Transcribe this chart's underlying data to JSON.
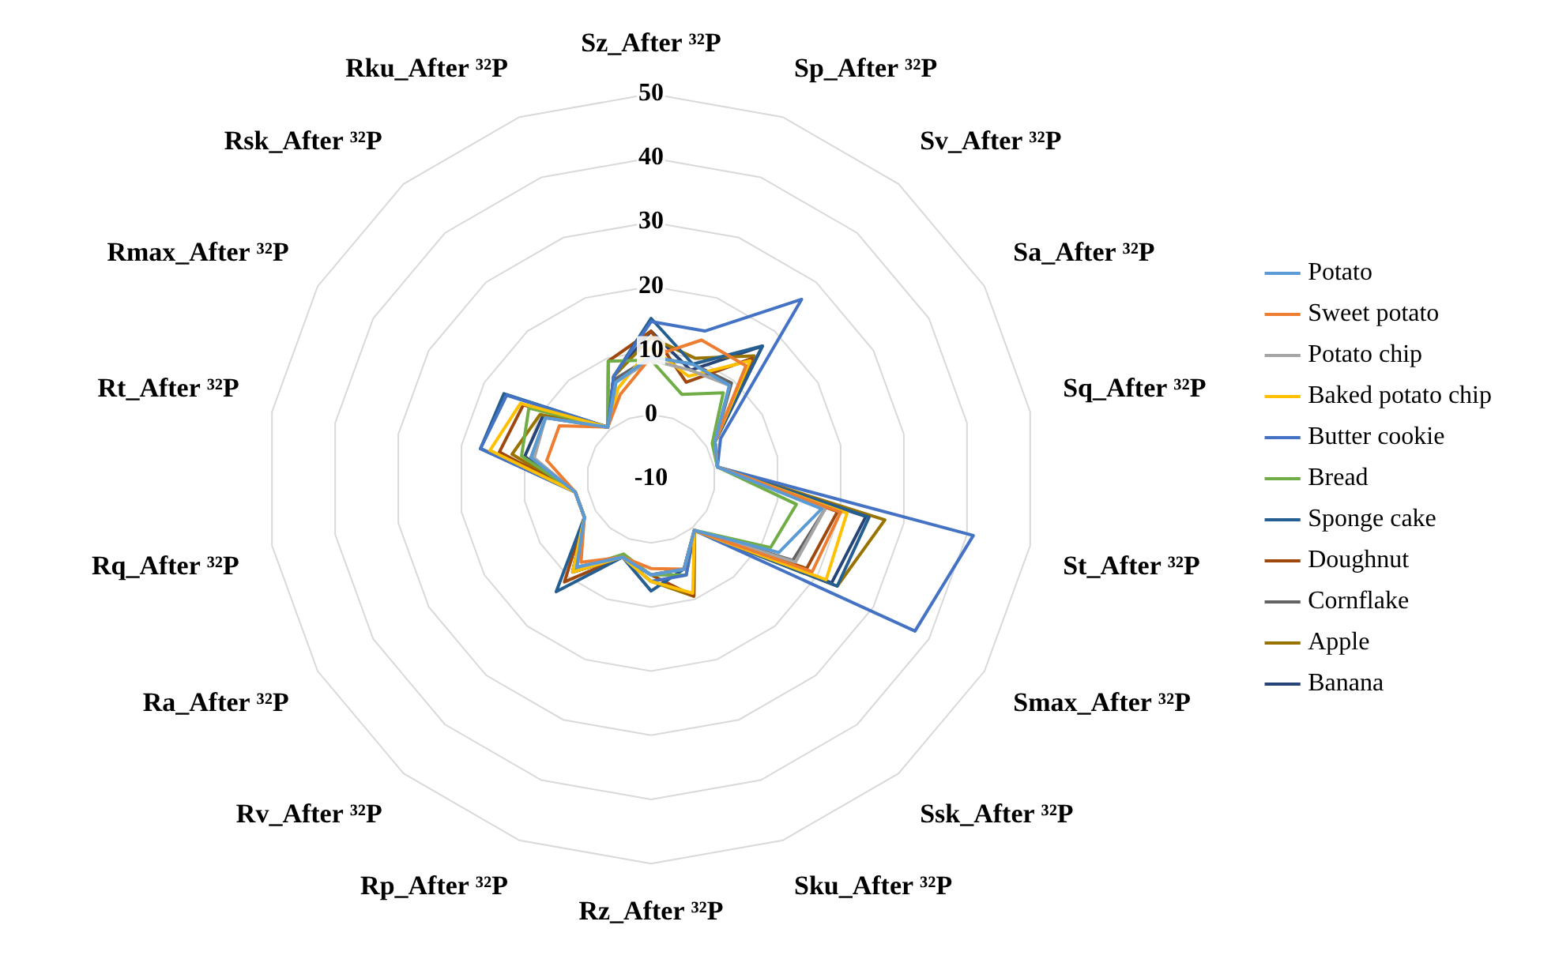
{
  "chart_data": {
    "type": "radar",
    "categories": [
      "Sz_After ³²P",
      "Sp_After ³²P",
      "Sv_After ³²P",
      "Sa_After ³²P",
      "Sq_After ³²P",
      "St_After ³²P",
      "Smax_After ³²P",
      "Ssk_After ³²P",
      "Sku_After ³²P",
      "Rz_After ³²P",
      "Rp_After ³²P",
      "Rv_After ³²P",
      "Ra_After ³²P",
      "Rq_After ³²P",
      "Rt_After ³²P",
      "Rmax_After ³²P",
      "Rsk_After ³²P",
      "Rku_After ³²P"
    ],
    "series": [
      {
        "name": "Potato",
        "color": "#5b9bd5",
        "values": [
          9,
          9,
          9,
          1.5,
          0.5,
          17,
          13,
          0.5,
          5,
          5,
          3,
          8,
          2,
          2,
          9,
          9,
          0.5,
          6
        ]
      },
      {
        "name": "Sweet potato",
        "color": "#ed7d31",
        "values": [
          9,
          13,
          13,
          1.5,
          0.5,
          20,
          19,
          0.5,
          5,
          4,
          3,
          7,
          2,
          2,
          6.5,
          6.5,
          0.5,
          4
        ]
      },
      {
        "name": "Potato chip",
        "color": "#a5a5a5",
        "values": [
          8.5,
          8,
          9,
          1.5,
          0.5,
          17.5,
          16,
          0.5,
          5,
          5,
          3,
          8,
          2,
          2,
          8.5,
          9,
          0.5,
          6
        ]
      },
      {
        "name": "Baked potato chip",
        "color": "#ffc000",
        "values": [
          10.5,
          7,
          14,
          1.5,
          0.5,
          21,
          21.5,
          0.5,
          9,
          6,
          3,
          9,
          2,
          2,
          15.5,
          13.5,
          0.5,
          5
        ]
      },
      {
        "name": "Butter cookie",
        "color": "#4472c4",
        "values": [
          14.5,
          14.5,
          26.5,
          2.5,
          0.5,
          41,
          37.5,
          0.5,
          6,
          6,
          3,
          9,
          2,
          2,
          17,
          16,
          0.5,
          7
        ]
      },
      {
        "name": "Bread",
        "color": "#70ad47",
        "values": [
          8.5,
          4,
          7.5,
          1,
          0.5,
          13,
          11.5,
          0.5,
          6,
          5,
          2.5,
          8.5,
          2,
          2,
          10.5,
          12,
          0.5,
          9.5
        ]
      },
      {
        "name": "Sponge cake",
        "color": "#255e91",
        "values": [
          15,
          9,
          17,
          1.5,
          0.5,
          24.5,
          23.5,
          0.5,
          5,
          7.5,
          3,
          13,
          2,
          2,
          17,
          16.5,
          0.5,
          7
        ]
      },
      {
        "name": "Doughnut",
        "color": "#9e480e",
        "values": [
          13,
          6,
          14.5,
          1.5,
          0.5,
          19.5,
          18,
          0.5,
          9.5,
          5,
          3,
          11,
          2,
          2,
          14,
          13,
          0.5,
          9.5
        ]
      },
      {
        "name": "Cornflake",
        "color": "#636363",
        "values": [
          9,
          9,
          9.5,
          1.5,
          0.5,
          17.5,
          15.5,
          0.5,
          5,
          5,
          3,
          8,
          2,
          2,
          9,
          9,
          0.5,
          6.5
        ]
      },
      {
        "name": "Apple",
        "color": "#997300",
        "values": [
          12,
          10,
          15,
          1.5,
          0.5,
          27,
          23.5,
          0.5,
          9.5,
          6,
          3,
          9,
          2,
          2,
          12,
          10,
          0.5,
          7
        ]
      },
      {
        "name": "Banana",
        "color": "#264478",
        "values": [
          13,
          8,
          17,
          1.5,
          0.5,
          24,
          22.5,
          0.5,
          5,
          5,
          3,
          9,
          2,
          2,
          10,
          9.5,
          0.5,
          7
        ]
      }
    ],
    "ylim": [
      -10,
      50
    ],
    "yticks": [
      -10,
      0,
      10,
      20,
      30,
      40,
      50
    ],
    "grid": true,
    "legend": "right",
    "marker": "none"
  }
}
